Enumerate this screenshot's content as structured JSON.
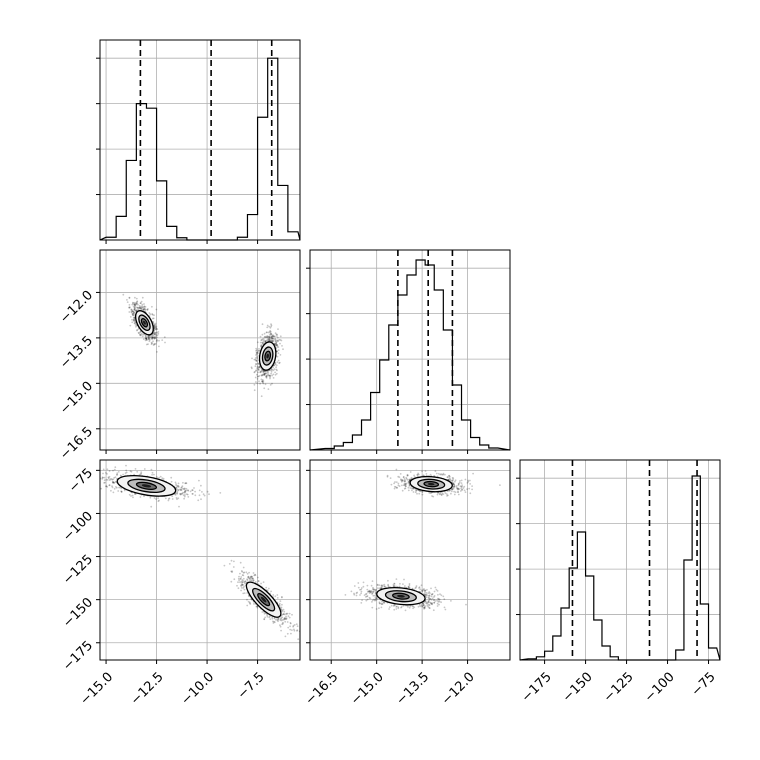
{
  "chart_data": {
    "type": "corner",
    "title": "",
    "parameters": [
      "",
      "",
      ""
    ],
    "grid": true,
    "panels": {
      "hist_0": {
        "type": "histogram",
        "xlim": [
          -15.3,
          -5.4
        ],
        "bin_edges": [
          -15.0,
          -14.5,
          -14.0,
          -13.5,
          -13.0,
          -12.5,
          -12.0,
          -11.5,
          -11.0,
          -10.5,
          -10.0,
          -9.5,
          -9.0,
          -8.5,
          -8.0,
          -7.5,
          -7.0,
          -6.5,
          -6.0,
          -5.5
        ],
        "counts": [
          0.6,
          5.2,
          17.5,
          30.0,
          29.0,
          13.0,
          3.0,
          0.5,
          0,
          0,
          0,
          0,
          0,
          0.6,
          5.6,
          27.0,
          40.0,
          12.0,
          1.8
        ],
        "ymax": 44,
        "quantiles": [
          -13.3,
          -9.8,
          -6.8
        ]
      },
      "scatter_1_0": {
        "type": "2d-density",
        "xlim": [
          -15.3,
          -5.4
        ],
        "ylim": [
          -17.2,
          -10.6
        ],
        "clusters": [
          {
            "center": [
              -13.1,
              -13.0
            ],
            "slope": -1.2,
            "major_sd": 1.25,
            "minor_sd": 0.22,
            "points": 900
          },
          {
            "center": [
              -7.0,
              -14.1
            ],
            "slope": 4.0,
            "major_sd": 1.35,
            "minor_sd": 0.28,
            "points": 900
          }
        ],
        "contour_levels": [
          0.39,
          0.86,
          1.0
        ]
      },
      "hist_1": {
        "type": "histogram",
        "xlim": [
          -17.2,
          -10.6
        ],
        "bin_edges": [
          -16.7,
          -16.4,
          -16.1,
          -15.8,
          -15.5,
          -15.2,
          -14.9,
          -14.6,
          -14.3,
          -14.0,
          -13.7,
          -13.4,
          -13.1,
          -12.8,
          -12.5,
          -12.2,
          -11.9,
          -11.6,
          -11.3,
          -11.0
        ],
        "counts": [
          0.3,
          0.8,
          1.5,
          3.0,
          6.0,
          11.5,
          18.0,
          25.0,
          31.0,
          35.0,
          38.0,
          37.0,
          32.0,
          24.0,
          13.0,
          6.0,
          2.5,
          1.0,
          0.4
        ],
        "ymax": 40,
        "quantiles": [
          -14.3,
          -13.3,
          -12.5
        ]
      },
      "scatter_2_0": {
        "type": "2d-density",
        "xlim": [
          -15.3,
          -5.4
        ],
        "ylim": [
          -185,
          -69
        ],
        "clusters": [
          {
            "center": [
              -13.0,
              -84.0
            ],
            "slope": -2.0,
            "major_sd": 2.8,
            "minor_sd": 0.35,
            "points": 700
          },
          {
            "center": [
              -7.2,
              -150.0
            ],
            "slope": -12.0,
            "major_sd": 2.2,
            "minor_sd": 0.28,
            "points": 700
          }
        ],
        "contour_levels": [
          0.39,
          0.86,
          1.0
        ]
      },
      "scatter_2_1": {
        "type": "2d-density",
        "xlim": [
          -17.2,
          -10.6
        ],
        "ylim": [
          -185,
          -69
        ],
        "clusters": [
          {
            "center": [
              -13.2,
              -83.0
            ],
            "slope": -1.3,
            "major_sd": 2.0,
            "minor_sd": 0.25,
            "points": 700
          },
          {
            "center": [
              -14.2,
              -148.0
            ],
            "slope": -1.8,
            "major_sd": 2.3,
            "minor_sd": 0.3,
            "points": 900
          }
        ],
        "contour_levels": [
          0.39,
          0.86,
          1.0
        ]
      },
      "hist_2": {
        "type": "histogram",
        "xlim": [
          -190,
          -68
        ],
        "bin_edges": [
          -185,
          -180,
          -175,
          -170,
          -165,
          -160,
          -155,
          -150,
          -145,
          -140,
          -135,
          -130,
          -125,
          -120,
          -115,
          -110,
          -105,
          -100,
          -95,
          -90,
          -85,
          -80,
          -75,
          -70
        ],
        "counts": [
          0.3,
          0.8,
          2.2,
          6.0,
          13.0,
          23.0,
          32.0,
          21.0,
          10.0,
          3.5,
          0.8,
          0,
          0,
          0,
          0,
          0,
          0,
          0,
          2.5,
          25.0,
          46.0,
          14.0,
          3.0
        ],
        "ymax": 50,
        "quantiles": [
          -158,
          -111,
          -82
        ]
      }
    },
    "axis_ticks": {
      "x0": [
        "−15.0",
        "−12.5",
        "−10.0",
        "−7.5"
      ],
      "x0_values": [
        -15.0,
        -12.5,
        -10.0,
        -7.5
      ],
      "x1": [
        "−16.5",
        "−15.0",
        "−13.5",
        "−12.0"
      ],
      "x1_values": [
        -16.5,
        -15.0,
        -13.5,
        -12.0
      ],
      "x2": [
        "−175",
        "−150",
        "−125",
        "−100",
        "−75"
      ],
      "x2_values": [
        -175,
        -150,
        -125,
        -100,
        -75
      ],
      "y1": [
        "−12.0",
        "−13.5",
        "−15.0",
        "−16.5"
      ],
      "y1_values": [
        -12.0,
        -13.5,
        -15.0,
        -16.5
      ],
      "y2": [
        "−75",
        "−100",
        "−125",
        "−150",
        "−175"
      ],
      "y2_values": [
        -75,
        -100,
        -125,
        -150,
        -175
      ]
    }
  }
}
